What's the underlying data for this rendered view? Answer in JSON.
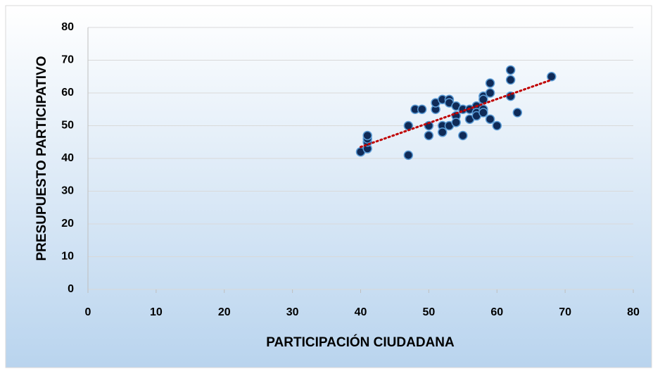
{
  "chart_data": {
    "type": "scatter",
    "x_label": "PARTICIPACIÓN CIUDADANA",
    "y_label": "PRESUPUESTO PARTICIPATIVO",
    "xlim": [
      0,
      80
    ],
    "ylim": [
      0,
      80
    ],
    "xticks": [
      0,
      10,
      20,
      30,
      40,
      50,
      60,
      70,
      80
    ],
    "yticks": [
      0,
      10,
      20,
      30,
      40,
      50,
      60,
      70,
      80
    ],
    "grid": true,
    "color": "#0f2a57",
    "x": [
      40,
      41,
      41,
      41,
      41,
      47,
      47,
      48,
      49,
      50,
      50,
      51,
      51,
      52,
      52,
      52,
      53,
      53,
      53,
      54,
      54,
      54,
      55,
      55,
      56,
      56,
      57,
      57,
      57,
      58,
      58,
      58,
      58,
      59,
      59,
      59,
      60,
      62,
      62,
      62,
      63,
      68
    ],
    "values": [
      42,
      43,
      45,
      46,
      47,
      41,
      50,
      55,
      55,
      47,
      50,
      55,
      57,
      58,
      50,
      48,
      58,
      57,
      50,
      56,
      53,
      51,
      55,
      47,
      52,
      55,
      56,
      54,
      53,
      59,
      58,
      55,
      54,
      63,
      60,
      52,
      50,
      67,
      64,
      59,
      54,
      65
    ],
    "trendline": {
      "x": [
        40,
        68
      ],
      "values": [
        43.5,
        64
      ],
      "color": "#c00000"
    }
  }
}
